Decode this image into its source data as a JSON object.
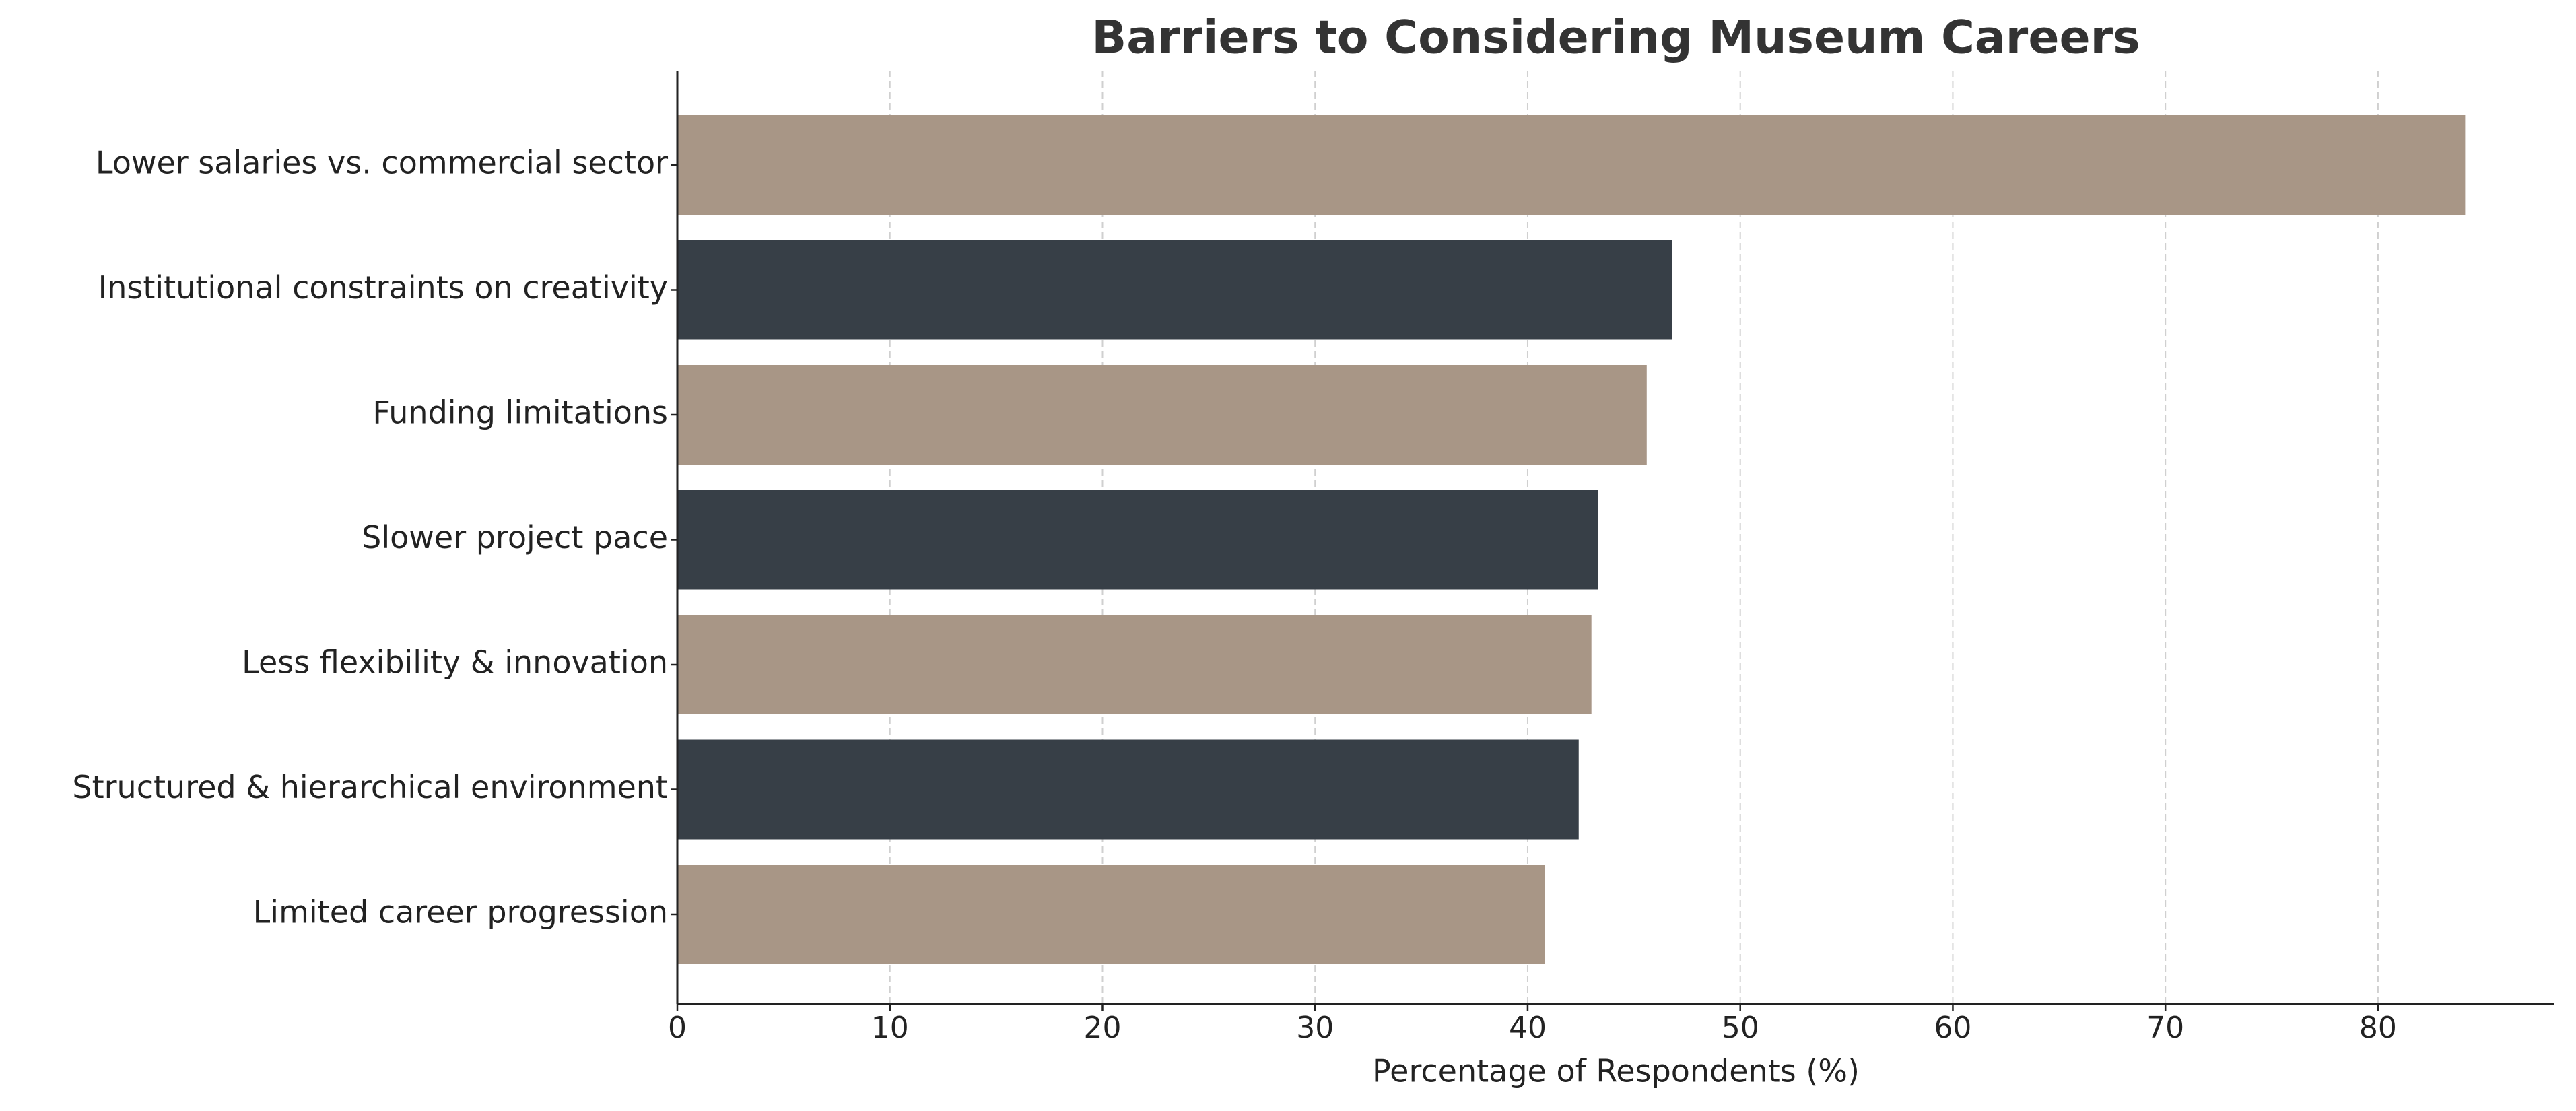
{
  "chart_data": {
    "type": "barh",
    "title": "Barriers to Considering Museum Careers",
    "x_label": "Percentage of Respondents (%)",
    "categories": [
      "Lower salaries vs. commercial sector",
      "Institutional constraints on creativity",
      "Funding limitations",
      "Slower project pace",
      "Less flexibility & innovation",
      "Structured & hierarchical environment",
      "Limited career progression"
    ],
    "values": [
      84.1,
      46.8,
      45.6,
      43.3,
      43.0,
      42.4,
      40.8
    ],
    "colors": [
      "#a89686",
      "#373f47",
      "#a89686",
      "#373f47",
      "#a89686",
      "#373f47",
      "#a89686"
    ],
    "xlim": [
      0,
      88.3
    ],
    "xticks": [
      0,
      10,
      20,
      30,
      40,
      50,
      60,
      70,
      80
    ],
    "grid": true
  }
}
